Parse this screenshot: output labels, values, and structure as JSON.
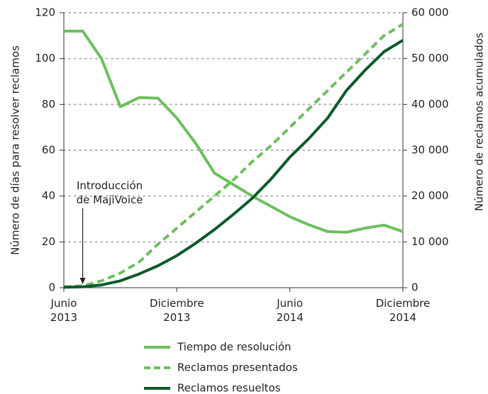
{
  "chart_data": {
    "type": "line",
    "x": [
      "2013-06",
      "2013-07",
      "2013-08",
      "2013-09",
      "2013-10",
      "2013-11",
      "2013-12",
      "2014-01",
      "2014-02",
      "2014-03",
      "2014-04",
      "2014-05",
      "2014-06",
      "2014-07",
      "2014-08",
      "2014-09",
      "2014-10",
      "2014-11",
      "2014-12"
    ],
    "xlim": [
      "2013-06",
      "2014-12"
    ],
    "xticks": [
      {
        "value": "2013-06",
        "label": "Junio\n2013"
      },
      {
        "value": "2013-12",
        "label": "Diciembre\n2013"
      },
      {
        "value": "2014-06",
        "label": "Junio\n2014"
      },
      {
        "value": "2014-12",
        "label": "Diciembre\n2014"
      }
    ],
    "ylabel": "Número de días para resolver reclamos",
    "y2label": "Número de reclamos acumulados",
    "ylim": [
      0,
      120
    ],
    "yticks": [
      0,
      20,
      40,
      60,
      80,
      100,
      120
    ],
    "y2lim": [
      0,
      60000
    ],
    "y2ticks": [
      0,
      {
        "value": 10000,
        "label": "10 000"
      },
      {
        "value": 20000,
        "label": "20 000"
      },
      {
        "value": 30000,
        "label": "30 000"
      },
      {
        "value": 40000,
        "label": "40 000"
      },
      {
        "value": 50000,
        "label": "50 000"
      },
      {
        "value": 60000,
        "label": "60 000"
      }
    ],
    "grid": true,
    "legend": "bottom",
    "annotation": {
      "text": "Introducción\nde MajiVoice",
      "x": "2013-07"
    },
    "series": [
      {
        "name": "Tiempo de resolución",
        "color": "#6cbf5c",
        "style": "solid",
        "axis": "y",
        "values": [
          112,
          112,
          100,
          79,
          83,
          82.7,
          74,
          63,
          50,
          45,
          40,
          35.5,
          31,
          27.5,
          24.5,
          24.2,
          26,
          27.3,
          24.5
        ]
      },
      {
        "name": "Reclamos presentados",
        "color": "#6cbf5c",
        "style": "dashed",
        "axis": "y2",
        "values": [
          200,
          400,
          1500,
          3200,
          5600,
          9500,
          13000,
          16500,
          20000,
          23500,
          27500,
          31000,
          35000,
          39000,
          43000,
          47000,
          51000,
          55000,
          57500
        ]
      },
      {
        "name": "Reclamos resueltos",
        "color": "#0b5a2a",
        "style": "solid",
        "axis": "y2",
        "values": [
          100,
          200,
          600,
          1500,
          3000,
          4800,
          7000,
          9700,
          12700,
          16000,
          19500,
          23700,
          28500,
          32500,
          37000,
          43000,
          47500,
          51500,
          54000
        ]
      }
    ]
  }
}
